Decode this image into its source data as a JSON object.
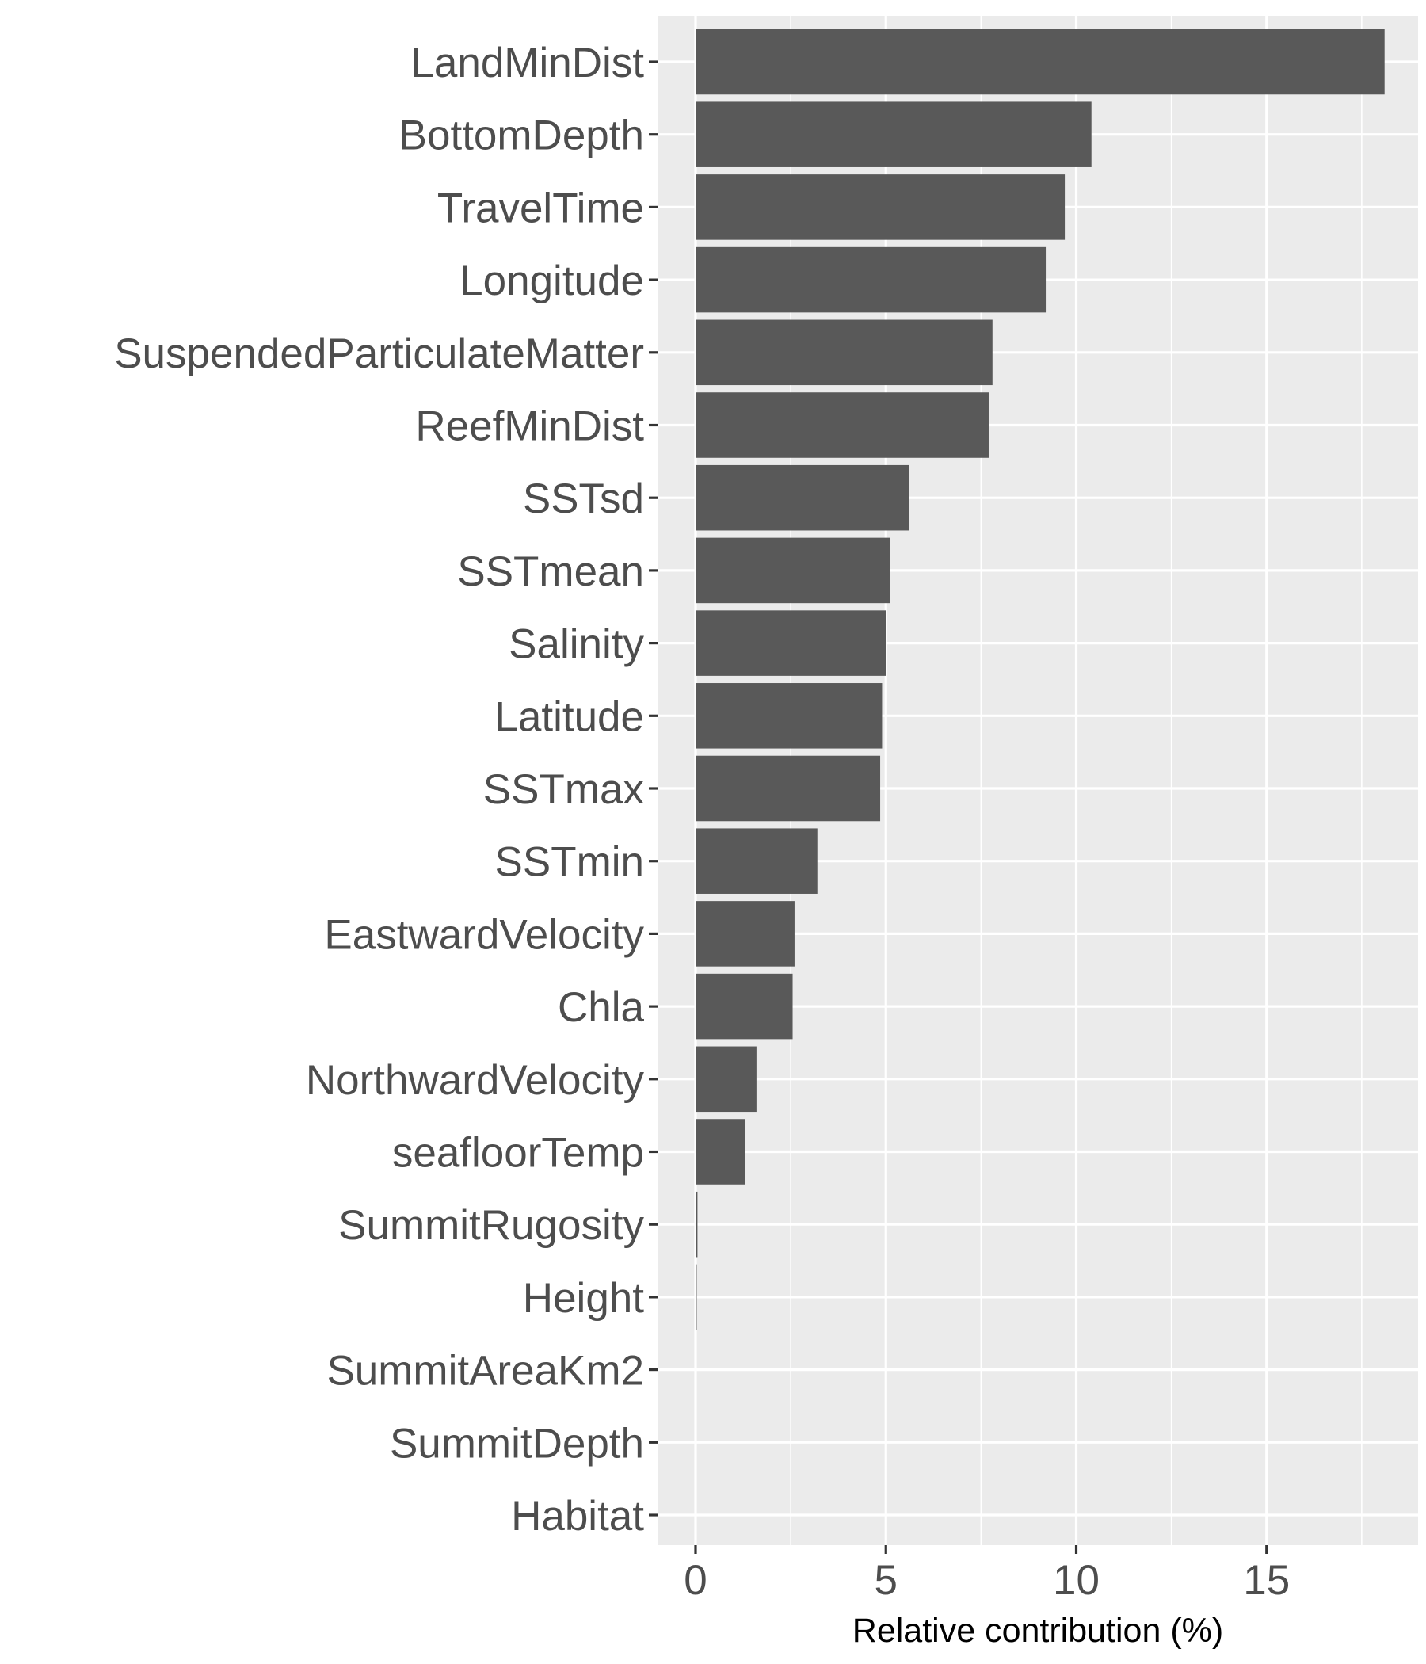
{
  "chart_data": {
    "type": "bar",
    "orientation": "horizontal",
    "title": "",
    "xlabel": "Relative contribution (%)",
    "ylabel": "",
    "xlim": [
      -0.9,
      19.1
    ],
    "xticks": [
      0,
      5,
      10,
      15
    ],
    "grid": true,
    "legend": "none",
    "categories": [
      "LandMinDist",
      "BottomDepth",
      "TravelTime",
      "Longitude",
      "SuspendedParticulateMatter",
      "ReefMinDist",
      "SSTsd",
      "SSTmean",
      "Salinity",
      "Latitude",
      "SSTmax",
      "SSTmin",
      "EastwardVelocity",
      "Chla",
      "NorthwardVelocity",
      "seafloorTemp",
      "SummitRugosity",
      "Height",
      "SummitAreaKm2",
      "SummitDepth",
      "Habitat"
    ],
    "values": [
      18.1,
      10.4,
      9.7,
      9.2,
      7.8,
      7.7,
      5.6,
      5.1,
      5.0,
      4.9,
      4.85,
      3.2,
      2.6,
      2.55,
      1.6,
      1.3,
      0.05,
      0.03,
      0.02,
      0.0,
      0.0
    ],
    "colors": {
      "bar": "#595959",
      "panel": "#ebebeb",
      "grid": "#ffffff",
      "text": "#4d4d4d",
      "tick": "#333333"
    }
  }
}
